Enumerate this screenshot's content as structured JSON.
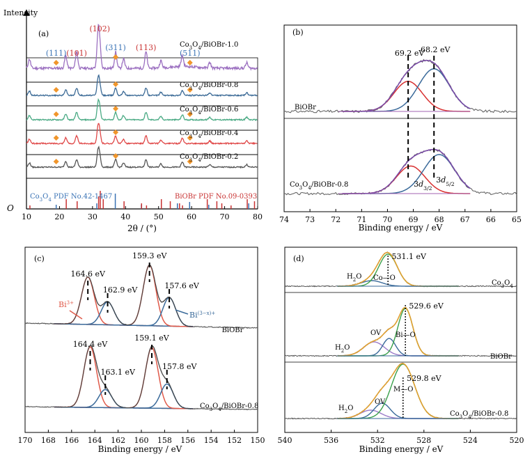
{
  "chart_data": [
    {
      "panel": "(a)",
      "type": "line",
      "ylabel": "Intensity",
      "ylabel_origin": "O",
      "xlabel": "2θ / (°)",
      "xlim": [
        10,
        80
      ],
      "xticks": [
        10,
        20,
        30,
        40,
        50,
        60,
        70,
        80
      ],
      "series": [
        {
          "name": "Co3O4/BiOBr-1.0",
          "color": "#9b6fc0",
          "markers_deg": [
            19.0,
            37.0,
            59.5
          ]
        },
        {
          "name": "Co3O4/BiOBr-0.8",
          "color": "#3b6a96",
          "markers_deg": [
            19.0,
            37.0,
            59.5
          ]
        },
        {
          "name": "Co3O4/BiOBr-0.6",
          "color": "#4aaa84",
          "markers_deg": [
            19.0,
            37.0,
            59.5
          ]
        },
        {
          "name": "Co3O4/BiOBr-0.4",
          "color": "#e04848",
          "markers_deg": [
            19.0,
            37.0,
            59.5
          ]
        },
        {
          "name": "Co3O4/BiOBr-0.2",
          "color": "#555555",
          "markers_deg": [
            19.0,
            37.0,
            59.5
          ]
        }
      ],
      "peaks_2theta": [
        10.9,
        21.9,
        25.2,
        31.7,
        32.2,
        37.0,
        39.4,
        46.2,
        50.7,
        57.2,
        65.5,
        76.7
      ],
      "peak_labels": [
        {
          "text": "(111)",
          "x": 19.0,
          "color": "#3a73b5"
        },
        {
          "text": "(101)",
          "x": 25.2,
          "color": "#c83232"
        },
        {
          "text": "(102)",
          "x": 32.2,
          "color": "#c83232"
        },
        {
          "text": "(311)",
          "x": 37.0,
          "color": "#3a73b5"
        },
        {
          "text": "(113)",
          "x": 46.2,
          "color": "#c83232"
        },
        {
          "text": "(511)",
          "x": 59.5,
          "color": "#3a73b5"
        }
      ],
      "reference_lines": {
        "Co3O4": {
          "label": "Co3O4 PDF No.42-1467",
          "color": "#3a73b5",
          "positions": [
            19.0,
            31.3,
            36.9,
            44.8,
            55.7,
            59.4,
            65.2,
            77.3
          ]
        },
        "BiOBr": {
          "label": "BiOBr PDF No.09-0393",
          "color": "#c83232",
          "positions": [
            10.9,
            21.9,
            25.2,
            31.7,
            32.2,
            33.1,
            39.4,
            44.7,
            46.2,
            50.7,
            53.4,
            56.2,
            57.1,
            64.6,
            67.5,
            69.0,
            71.8,
            76.7,
            78.9
          ]
        }
      },
      "marker_color": "#f0962c"
    },
    {
      "panel": "(b)",
      "type": "line",
      "xlabel": "Binding energy / eV",
      "xlim": [
        74,
        65
      ],
      "xticks": [
        74,
        73,
        72,
        71,
        70,
        69,
        68,
        67,
        66,
        65
      ],
      "traces": [
        {
          "name": "BiOBr",
          "components": [
            69.2,
            68.2
          ]
        },
        {
          "name": "Co3O4/BiOBr-0.8",
          "components": [
            69.1,
            68.0
          ]
        }
      ],
      "peak_labels": [
        "69.2 eV",
        "68.2 eV"
      ],
      "annotations": [
        "3d3/2",
        "3d5/2"
      ]
    },
    {
      "panel": "(c)",
      "type": "line",
      "xlabel": "Binding energy / eV",
      "xlim": [
        170,
        150
      ],
      "xticks": [
        170,
        168,
        166,
        164,
        162,
        160,
        158,
        156,
        154,
        152,
        150
      ],
      "traces": [
        {
          "name": "BiOBr",
          "peaks": [
            164.6,
            162.9,
            159.3,
            157.6
          ],
          "peak_labels": [
            "164.6 eV",
            "162.9 eV",
            "159.3 eV",
            "157.6 eV"
          ]
        },
        {
          "name": "Co3O4/BiOBr-0.8",
          "peaks": [
            164.4,
            163.1,
            159.1,
            157.8
          ],
          "peak_labels": [
            "164.4 eV",
            "163.1 eV",
            "159.1 eV",
            "157.8 eV"
          ]
        }
      ],
      "annotations": [
        "Bi3+",
        "Bi(3-x)+"
      ]
    },
    {
      "panel": "(d)",
      "type": "line",
      "xlabel": "Binding energy / eV",
      "xlim": [
        540,
        520
      ],
      "xticks": [
        540,
        536,
        532,
        528,
        524,
        520
      ],
      "traces": [
        {
          "name": "Co3O4",
          "peak": 531.1,
          "peak_label": "531.1 eV",
          "species": [
            "H2O",
            "Co—O"
          ]
        },
        {
          "name": "BiOBr",
          "peak": 529.6,
          "peak_label": "529.6 eV",
          "species": [
            "H2O",
            "OV",
            "Bi—O"
          ]
        },
        {
          "name": "Co3O4/BiOBr-0.8",
          "peak": 529.8,
          "peak_label": "529.8 eV",
          "species": [
            "H2O",
            "OV",
            "M—O"
          ]
        }
      ]
    }
  ]
}
